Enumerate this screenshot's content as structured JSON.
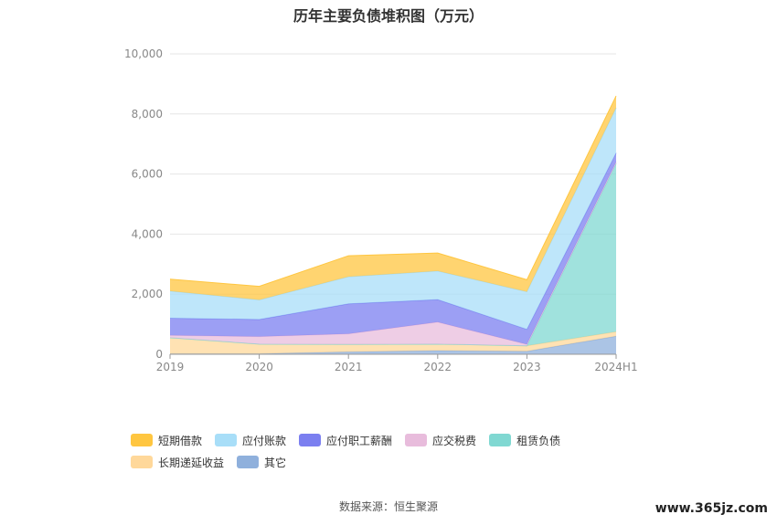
{
  "title": "历年主要负债堆积图（万元）",
  "source": "数据来源：恒生聚源",
  "watermark": "www.365jz.com",
  "chart_data": {
    "type": "area",
    "stacked": true,
    "categories": [
      "2019",
      "2020",
      "2021",
      "2022",
      "2023",
      "2024H1"
    ],
    "ylim": [
      0,
      10000
    ],
    "yticks": [
      "0",
      "2,000",
      "4,000",
      "6,000",
      "8,000",
      "10,000"
    ],
    "ytick_values": [
      0,
      2000,
      4000,
      6000,
      8000,
      10000
    ],
    "grid": true,
    "legend_position": "bottom",
    "series": [
      {
        "name": "其它",
        "color": "#8fb0dc",
        "values": [
          20,
          20,
          80,
          120,
          100,
          600
        ]
      },
      {
        "name": "长期递延收益",
        "color": "#ffd89a",
        "values": [
          530,
          320,
          250,
          220,
          180,
          150
        ]
      },
      {
        "name": "租赁负债",
        "color": "#80d8d2",
        "values": [
          0,
          0,
          0,
          0,
          0,
          5600
        ]
      },
      {
        "name": "应交税费",
        "color": "#e8bcdc",
        "values": [
          80,
          250,
          350,
          730,
          50,
          50
        ]
      },
      {
        "name": "应付职工薪酬",
        "color": "#7b7ff0",
        "values": [
          570,
          570,
          1000,
          750,
          500,
          300
        ]
      },
      {
        "name": "应付账款",
        "color": "#a8def8",
        "values": [
          900,
          650,
          900,
          950,
          1250,
          1500
        ]
      },
      {
        "name": "短期借款",
        "color": "#ffc640",
        "values": [
          400,
          450,
          700,
          600,
          400,
          400
        ]
      }
    ],
    "legend_order": [
      "短期借款",
      "应付账款",
      "应付职工薪酬",
      "应交税费",
      "租赁负债",
      "长期递延收益",
      "其它"
    ]
  }
}
